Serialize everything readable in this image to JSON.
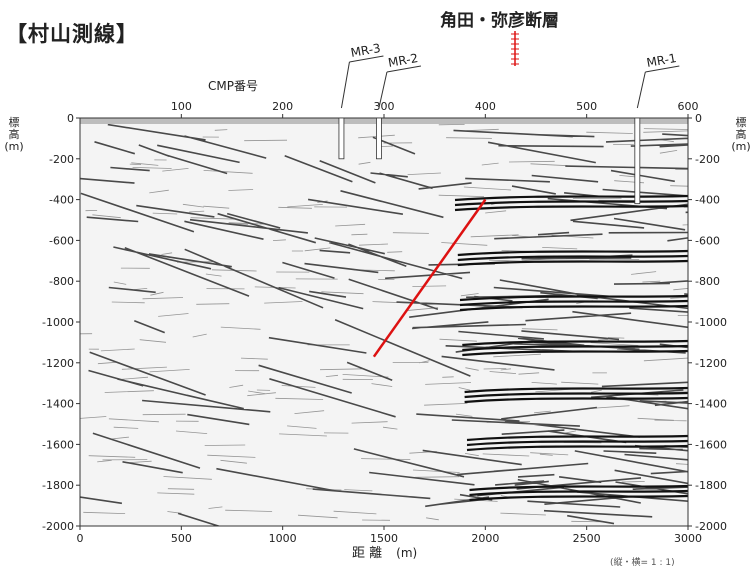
{
  "title": "【村山測線】",
  "fault": {
    "name": "角田・弥彦断層"
  },
  "top_axis": {
    "title": "CMP番号",
    "ticks": [
      100,
      200,
      300,
      400,
      500,
      600
    ]
  },
  "bottom_axis": {
    "title": "距 離",
    "unit": "(m)",
    "ticks": [
      0,
      500,
      1000,
      1500,
      2000,
      2500,
      3000
    ]
  },
  "left_axis": {
    "chars": [
      "標",
      "高"
    ],
    "unit": "(m)",
    "ticks": [
      0,
      -200,
      -400,
      -600,
      -800,
      -1000,
      -1200,
      -1400,
      -1600,
      -1800,
      -2000
    ]
  },
  "right_axis": {
    "chars": [
      "標",
      "高"
    ],
    "unit": "(m)",
    "ticks": [
      0,
      -200,
      -400,
      -600,
      -800,
      -1000,
      -1200,
      -1400,
      -1600,
      -1800,
      -2000
    ]
  },
  "wells": [
    {
      "name": "MR-3",
      "cmp": 258,
      "depth_m": -200
    },
    {
      "name": "MR-2",
      "cmp": 295,
      "depth_m": -200
    },
    {
      "name": "MR-1",
      "cmp": 550,
      "depth_m": -420
    }
  ],
  "fault_trace": {
    "color": "#dd1111",
    "from": {
      "distance_m": 2000,
      "elevation_m": -400
    },
    "to": {
      "distance_m": 1450,
      "elevation_m": -1170
    }
  },
  "scale_note": "(縦・横= 1 : 1)"
}
